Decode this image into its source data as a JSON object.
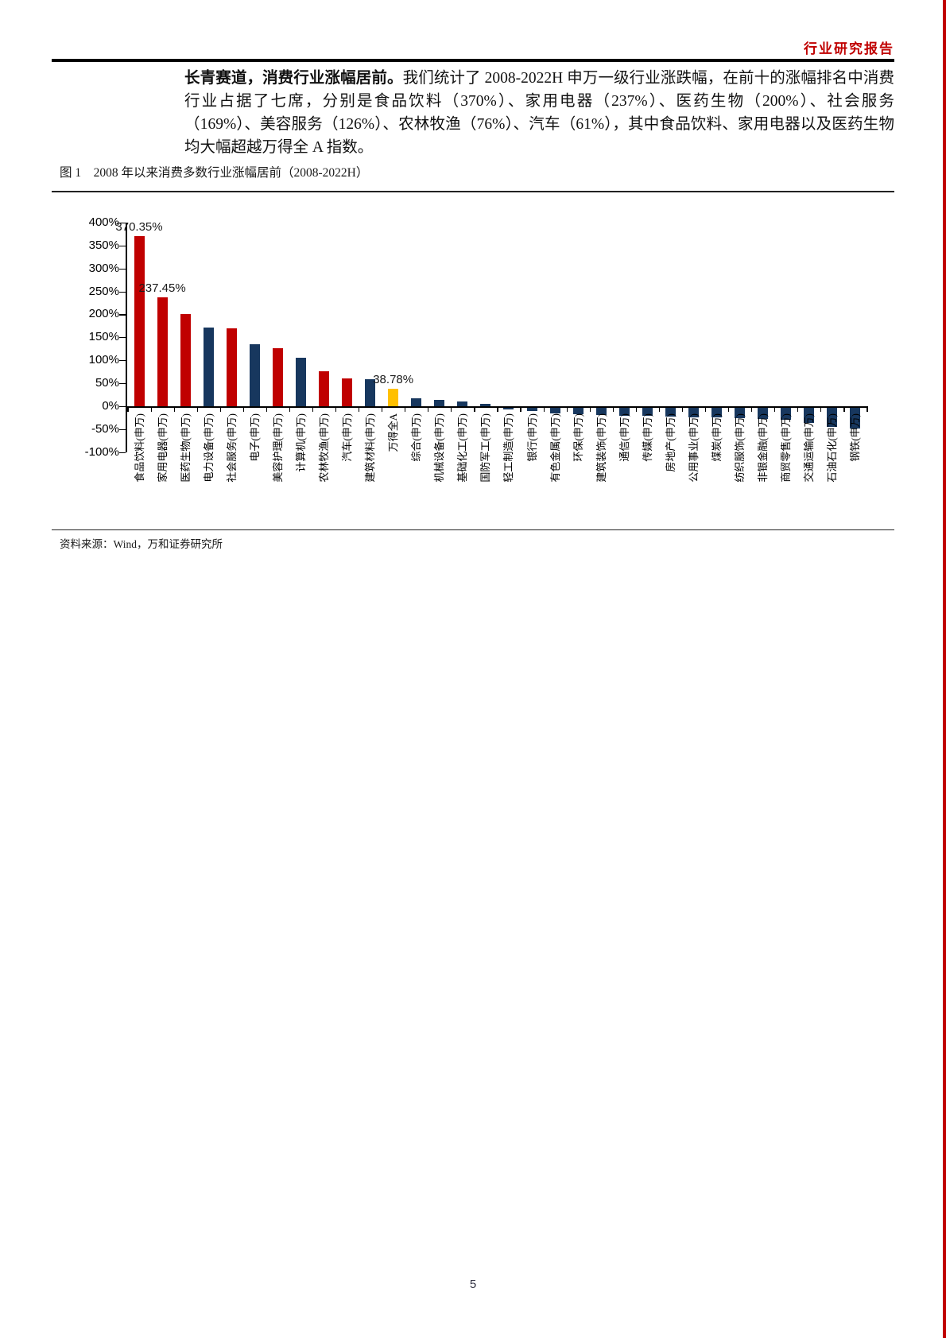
{
  "page": {
    "header": "行业研究报告",
    "page_number": "5",
    "accent_color": "#c00000"
  },
  "paragraph": {
    "lead_bold": "长青赛道，消费行业涨幅居前。",
    "body": "我们统计了 2008-2022H 申万一级行业涨跌幅，在前十的涨幅排名中消费行业占据了七席，分别是食品饮料（370%）、家用电器（237%）、医药生物（200%）、社会服务（169%）、美容服务（126%）、农林牧渔（76%）、汽车（61%），其中食品饮料、家用电器以及医药生物均大幅超越万得全 A 指数。"
  },
  "figure": {
    "caption": "图 1　2008 年以来消费多数行业涨幅居前（2008-2022H）",
    "source": "资料来源：Wind，万和证券研究所"
  },
  "chart_data": {
    "type": "bar",
    "title": "2008 年以来消费多数行业涨幅居前（2008-2022H）",
    "xlabel": "",
    "ylabel": "",
    "ylim": [
      -100,
      400
    ],
    "grid": false,
    "legend": "none",
    "y_ticks": [
      "400%",
      "350%",
      "300%",
      "250%",
      "200%",
      "150%",
      "100%",
      "50%",
      "0%",
      "-50%",
      "-100%"
    ],
    "categories": [
      "食品饮料(申万)",
      "家用电器(申万)",
      "医药生物(申万)",
      "电力设备(申万)",
      "社会服务(申万)",
      "电子(申万)",
      "美容护理(申万)",
      "计算机(申万)",
      "农林牧渔(申万)",
      "汽车(申万)",
      "建筑材料(申万)",
      "万得全A",
      "综合(申万)",
      "机械设备(申万)",
      "基础化工(申万)",
      "国防军工(申万)",
      "轻工制造(申万)",
      "银行(申万)",
      "有色金属(申万)",
      "环保(申万)",
      "建筑装饰(申万)",
      "通信(申万)",
      "传媒(申万)",
      "房地产(申万)",
      "公用事业(申万)",
      "煤炭(申万)",
      "纺织服饰(申万)",
      "非银金融(申万)",
      "商贸零售(申万)",
      "交通运输(申万)",
      "石油石化(申万)",
      "钢铁(申万)"
    ],
    "values": [
      370.35,
      237.45,
      200,
      171,
      169,
      135,
      126,
      106,
      76,
      61,
      58,
      38.78,
      18,
      13,
      10,
      5,
      -4,
      -7,
      -13,
      -14,
      -17,
      -18,
      -19,
      -20,
      -22,
      -22,
      -24,
      -25,
      -27,
      -33,
      -42,
      -46
    ],
    "colors": [
      "red",
      "red",
      "red",
      "blue",
      "red",
      "blue",
      "red",
      "blue",
      "red",
      "red",
      "blue",
      "gold",
      "blue",
      "blue",
      "blue",
      "blue",
      "blue",
      "blue",
      "blue",
      "blue",
      "blue",
      "blue",
      "blue",
      "blue",
      "blue",
      "blue",
      "blue",
      "blue",
      "blue",
      "blue",
      "blue",
      "blue"
    ],
    "point_labels": [
      {
        "index": 0,
        "text": "370.35%"
      },
      {
        "index": 1,
        "text": "237.45%"
      },
      {
        "index": 11,
        "text": "38.78%"
      }
    ],
    "palette": {
      "red": "#c00000",
      "blue": "#17375e",
      "gold": "#ffc000"
    }
  }
}
